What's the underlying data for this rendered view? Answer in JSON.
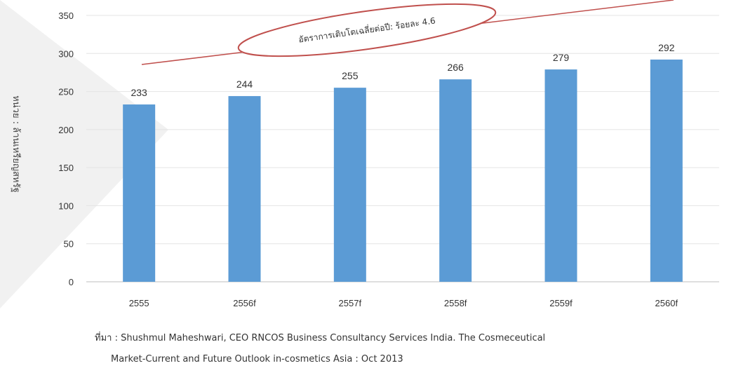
{
  "chart_data": {
    "type": "bar",
    "categories": [
      "2555",
      "2556f",
      "2557f",
      "2558f",
      "2559f",
      "2560f"
    ],
    "values": [
      233,
      244,
      255,
      266,
      279,
      292
    ],
    "ylabel": "หน่วย : ล้านเหรียญสหรัฐ",
    "ylim": [
      0,
      350
    ],
    "yticks": [
      0,
      50,
      100,
      150,
      200,
      250,
      300,
      350
    ],
    "grid": true,
    "annotation": "อัตราการเติบโตเฉลี่ยต่อปี: ร้อยละ 4.6",
    "bar_color": "#5b9bd5"
  },
  "source": {
    "line1": "ที่มา : Shushmul Maheshwari, CEO RNCOS Business Consultancy Services India. The Cosmeceutical",
    "line2": "Market-Current and Future Outlook in-cosmetics Asia : Oct 2013"
  }
}
